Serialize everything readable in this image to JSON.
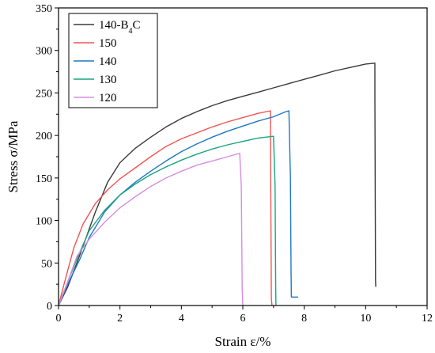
{
  "chart_data": {
    "type": "line",
    "xlabel": "Strain ε/%",
    "ylabel": "Stress σ/MPa",
    "xlim": [
      0,
      12
    ],
    "ylim": [
      0,
      350
    ],
    "xticks": [
      0,
      2,
      4,
      6,
      8,
      10,
      12
    ],
    "yticks": [
      0,
      50,
      100,
      150,
      200,
      250,
      300,
      350
    ],
    "grid": false,
    "legend_position": "top-left",
    "series": [
      {
        "name": "140-B4C",
        "legend_main": "140-B",
        "legend_sub": "4",
        "legend_tail": "C",
        "color": "#3a3a3a",
        "points": [
          [
            0,
            0
          ],
          [
            0.3,
            22
          ],
          [
            0.7,
            60
          ],
          [
            1.2,
            110
          ],
          [
            1.6,
            145
          ],
          [
            2,
            168
          ],
          [
            2.5,
            185
          ],
          [
            3,
            198
          ],
          [
            3.5,
            210
          ],
          [
            4,
            220
          ],
          [
            4.5,
            228
          ],
          [
            5,
            235
          ],
          [
            5.5,
            241
          ],
          [
            6,
            246
          ],
          [
            6.5,
            251
          ],
          [
            7,
            256
          ],
          [
            7.5,
            261
          ],
          [
            8,
            266
          ],
          [
            8.5,
            271
          ],
          [
            9,
            276
          ],
          [
            9.5,
            280
          ],
          [
            10,
            284
          ],
          [
            10.3,
            285
          ],
          [
            10.3,
            245
          ],
          [
            10.32,
            30
          ],
          [
            10.33,
            22
          ]
        ]
      },
      {
        "name": "150",
        "color": "#f15454",
        "points": [
          [
            0,
            0
          ],
          [
            0.2,
            28
          ],
          [
            0.5,
            68
          ],
          [
            0.8,
            96
          ],
          [
            1.2,
            120
          ],
          [
            1.6,
            136
          ],
          [
            2,
            149
          ],
          [
            2.5,
            162
          ],
          [
            3,
            175
          ],
          [
            3.5,
            187
          ],
          [
            4,
            196
          ],
          [
            4.5,
            203
          ],
          [
            5,
            210
          ],
          [
            5.5,
            216
          ],
          [
            6,
            221
          ],
          [
            6.5,
            226
          ],
          [
            6.9,
            229
          ],
          [
            6.9,
            200
          ],
          [
            6.93,
            8
          ],
          [
            6.95,
            0
          ]
        ]
      },
      {
        "name": "140",
        "color": "#1f77c4",
        "points": [
          [
            0,
            0
          ],
          [
            0.3,
            25
          ],
          [
            0.7,
            55
          ],
          [
            1,
            80
          ],
          [
            1.5,
            110
          ],
          [
            2,
            130
          ],
          [
            2.5,
            145
          ],
          [
            3,
            158
          ],
          [
            3.5,
            170
          ],
          [
            4,
            181
          ],
          [
            4.5,
            190
          ],
          [
            5,
            198
          ],
          [
            5.5,
            205
          ],
          [
            6,
            211
          ],
          [
            6.5,
            217
          ],
          [
            7,
            222
          ],
          [
            7.4,
            228
          ],
          [
            7.5,
            229
          ],
          [
            7.55,
            150
          ],
          [
            7.57,
            40
          ],
          [
            7.58,
            10
          ],
          [
            7.8,
            10
          ]
        ]
      },
      {
        "name": "130",
        "color": "#16a67c",
        "points": [
          [
            0,
            0
          ],
          [
            0.3,
            28
          ],
          [
            0.6,
            55
          ],
          [
            1,
            88
          ],
          [
            1.5,
            112
          ],
          [
            2,
            130
          ],
          [
            2.5,
            143
          ],
          [
            3,
            154
          ],
          [
            3.5,
            163
          ],
          [
            4,
            171
          ],
          [
            4.5,
            178
          ],
          [
            5,
            184
          ],
          [
            5.5,
            189
          ],
          [
            6,
            193
          ],
          [
            6.5,
            197
          ],
          [
            7,
            199
          ],
          [
            7.05,
            140
          ],
          [
            7.07,
            20
          ],
          [
            7.08,
            0
          ]
        ]
      },
      {
        "name": "120",
        "color": "#d68ee0",
        "points": [
          [
            0,
            0
          ],
          [
            0.3,
            28
          ],
          [
            0.6,
            58
          ],
          [
            1,
            78
          ],
          [
            1.5,
            98
          ],
          [
            2,
            115
          ],
          [
            2.5,
            128
          ],
          [
            3,
            140
          ],
          [
            3.5,
            150
          ],
          [
            4,
            158
          ],
          [
            4.5,
            165
          ],
          [
            5,
            170
          ],
          [
            5.5,
            175
          ],
          [
            5.9,
            179
          ],
          [
            5.95,
            140
          ],
          [
            5.98,
            20
          ],
          [
            6,
            0
          ]
        ]
      }
    ]
  }
}
